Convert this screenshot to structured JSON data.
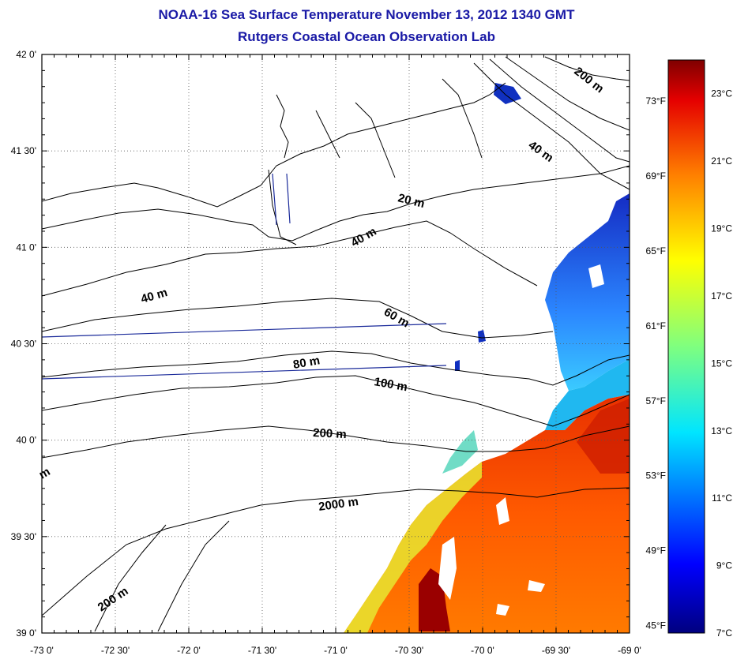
{
  "title": "NOAA-16 Sea Surface Temperature November 13, 2012 1340 GMT",
  "subtitle": "Rutgers Coastal Ocean Observation Lab",
  "map": {
    "lon_range": [
      -73,
      -69
    ],
    "lat_range": [
      39,
      42
    ],
    "x_ticks": [
      "-73 0'",
      "-72 30'",
      "-72 0'",
      "-71 30'",
      "-71 0'",
      "-70 30'",
      "-70 0'",
      "-69 30'",
      "-69 0'"
    ],
    "y_ticks": [
      "42 0'",
      "41 30'",
      "41 0'",
      "40 30'",
      "40 0'",
      "39 30'",
      "39 0'"
    ],
    "grid": true,
    "contour_labels": [
      "200 m",
      "40 m",
      "20 m",
      "40 m",
      "40 m",
      "60 m",
      "80 m",
      "100 m",
      "200 m",
      "2000 m",
      "200 m",
      "m"
    ]
  },
  "colorbar": {
    "celsius_labels": [
      "23°C",
      "21°C",
      "19°C",
      "17°C",
      "15°C",
      "13°C",
      "11°C",
      "9°C",
      "7°C"
    ],
    "fahrenheit_labels": [
      "73°F",
      "69°F",
      "65°F",
      "61°F",
      "57°F",
      "53°F",
      "49°F",
      "45°F"
    ],
    "range_c": [
      7,
      24
    ]
  }
}
